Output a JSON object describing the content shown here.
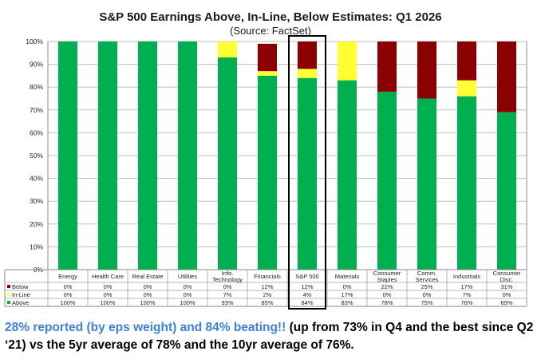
{
  "chart_data": {
    "type": "bar",
    "stacked": true,
    "title": "S&P 500 Earnings Above, In-Line, Below Estimates: Q1 2026",
    "subtitle": "(Source: FactSet)",
    "yticks": [
      "0%",
      "10%",
      "20%",
      "30%",
      "40%",
      "50%",
      "60%",
      "70%",
      "80%",
      "90%",
      "100%"
    ],
    "ylim": [
      0,
      100
    ],
    "grid": true,
    "legend_placement": "table-left",
    "categories": [
      "Energy",
      "Health Care",
      "Real Estate",
      "Utilities",
      "Info. Technology",
      "Financials",
      "S&P 500",
      "Materials",
      "Consumer Staples",
      "Comm. Services",
      "Industrials",
      "Consumer Disc."
    ],
    "highlighted_category": "S&P 500",
    "series": [
      {
        "name": "Below",
        "color": "#8b0000",
        "values": [
          0,
          0,
          0,
          0,
          0,
          12,
          12,
          0,
          22,
          25,
          17,
          31
        ],
        "labels": [
          "0%",
          "0%",
          "0%",
          "0%",
          "0%",
          "12%",
          "12%",
          "0%",
          "22%",
          "25%",
          "17%",
          "31%"
        ]
      },
      {
        "name": "In-Line",
        "color": "#ffff33",
        "values": [
          0,
          0,
          0,
          0,
          7,
          2,
          4,
          17,
          0,
          0,
          7,
          0
        ],
        "labels": [
          "0%",
          "0%",
          "0%",
          "0%",
          "7%",
          "2%",
          "4%",
          "17%",
          "0%",
          "0%",
          "7%",
          "0%"
        ]
      },
      {
        "name": "Above",
        "color": "#00b050",
        "values": [
          100,
          100,
          100,
          100,
          93,
          85,
          84,
          83,
          78,
          75,
          76,
          69
        ],
        "labels": [
          "100%",
          "100%",
          "100%",
          "100%",
          "93%",
          "85%",
          "84%",
          "83%",
          "78%",
          "75%",
          "76%",
          "69%"
        ]
      }
    ]
  },
  "caption": {
    "highlight": "28% reported (by eps weight) and 84% beating!!",
    "rest": " (up from 73% in Q4 and the best since Q2 ‘21) vs the 5yr average of 78% and the 10yr average of 76%."
  }
}
